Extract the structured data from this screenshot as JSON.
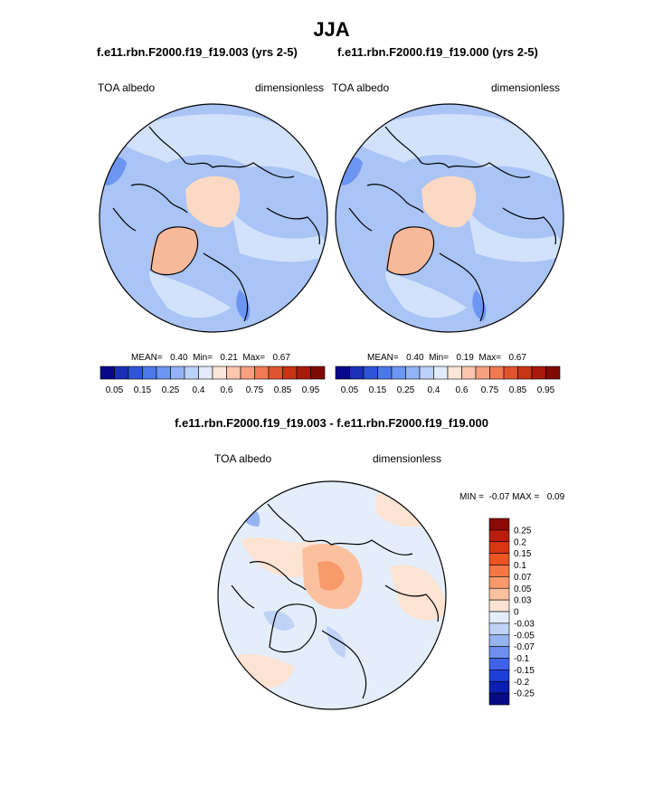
{
  "figure": {
    "title": "JJA",
    "diff_title": "f.e11.rbn.F2000.f19_f19.003 - f.e11.rbn.F2000.f19_f19.000",
    "diff_minmax": "MIN =  -0.07 MAX =   0.09"
  },
  "chart_data": [
    {
      "type": "heatmap",
      "subtitle": "f.e11.rbn.F2000.f19_f19.003 (yrs 2-5)",
      "left_label": "TOA albedo",
      "right_label": "dimensionless",
      "projection": "north polar stereographic",
      "stats": {
        "mean": 0.4,
        "min": 0.21,
        "max": 0.67
      },
      "stats_text": "MEAN=   0.40  Min=   0.21  Max=   0.67",
      "levels": [
        0.05,
        0.1,
        0.15,
        0.2,
        0.25,
        0.3,
        0.4,
        0.5,
        0.6,
        0.7,
        0.75,
        0.8,
        0.85,
        0.9,
        0.95
      ],
      "colorbar_tick_labels": [
        "0.05",
        "0.15",
        "0.25",
        "0.4",
        "0.6",
        "0.75",
        "0.85",
        "0.95"
      ],
      "colors": [
        "#08088a",
        "#1a2fb5",
        "#2e55d6",
        "#4a78ea",
        "#6c96f2",
        "#94b3f6",
        "#bcd1fa",
        "#e2ecfc",
        "#fde6d8",
        "#fbc6ad",
        "#f7a07f",
        "#f07a54",
        "#e0542f",
        "#c73416",
        "#a61a0a",
        "#7e0a04"
      ]
    },
    {
      "type": "heatmap",
      "subtitle": "f.e11.rbn.F2000.f19_f19.000 (yrs 2-5)",
      "left_label": "TOA albedo",
      "right_label": "dimensionless",
      "projection": "north polar stereographic",
      "stats": {
        "mean": 0.4,
        "min": 0.19,
        "max": 0.67
      },
      "stats_text": "MEAN=   0.40  Min=   0.19  Max=   0.67",
      "levels": [
        0.05,
        0.1,
        0.15,
        0.2,
        0.25,
        0.3,
        0.4,
        0.5,
        0.6,
        0.7,
        0.75,
        0.8,
        0.85,
        0.9,
        0.95
      ],
      "colorbar_tick_labels": [
        "0.05",
        "0.15",
        "0.25",
        "0.4",
        "0.6",
        "0.75",
        "0.85",
        "0.95"
      ],
      "colors": [
        "#08088a",
        "#1a2fb5",
        "#2e55d6",
        "#4a78ea",
        "#6c96f2",
        "#94b3f6",
        "#bcd1fa",
        "#e2ecfc",
        "#fde6d8",
        "#fbc6ad",
        "#f7a07f",
        "#f07a54",
        "#e0542f",
        "#c73416",
        "#a61a0a",
        "#7e0a04"
      ]
    },
    {
      "type": "heatmap",
      "subtitle": "f.e11.rbn.F2000.f19_f19.003 - f.e11.rbn.F2000.f19_f19.000",
      "left_label": "TOA albedo",
      "right_label": "dimensionless",
      "projection": "north polar stereographic",
      "stats": {
        "min": -0.07,
        "max": 0.09
      },
      "colorbar_orientation": "vertical",
      "colorbar_tick_labels": [
        "0.25",
        "0.2",
        "0.15",
        "0.1",
        "0.07",
        "0.05",
        "0.03",
        "0",
        "-0.03",
        "-0.05",
        "-0.07",
        "-0.1",
        "-0.15",
        "-0.2",
        "-0.25"
      ],
      "colors": [
        "#8a0a04",
        "#b81c0c",
        "#d8360f",
        "#ec5420",
        "#f47642",
        "#f89a6a",
        "#fbc19f",
        "#fde3d2",
        "#e4eefb",
        "#bfd3f7",
        "#97b4f2",
        "#6d8ff0",
        "#3f62ea",
        "#1c3fd8",
        "#0d1fb0",
        "#050c84"
      ]
    }
  ]
}
